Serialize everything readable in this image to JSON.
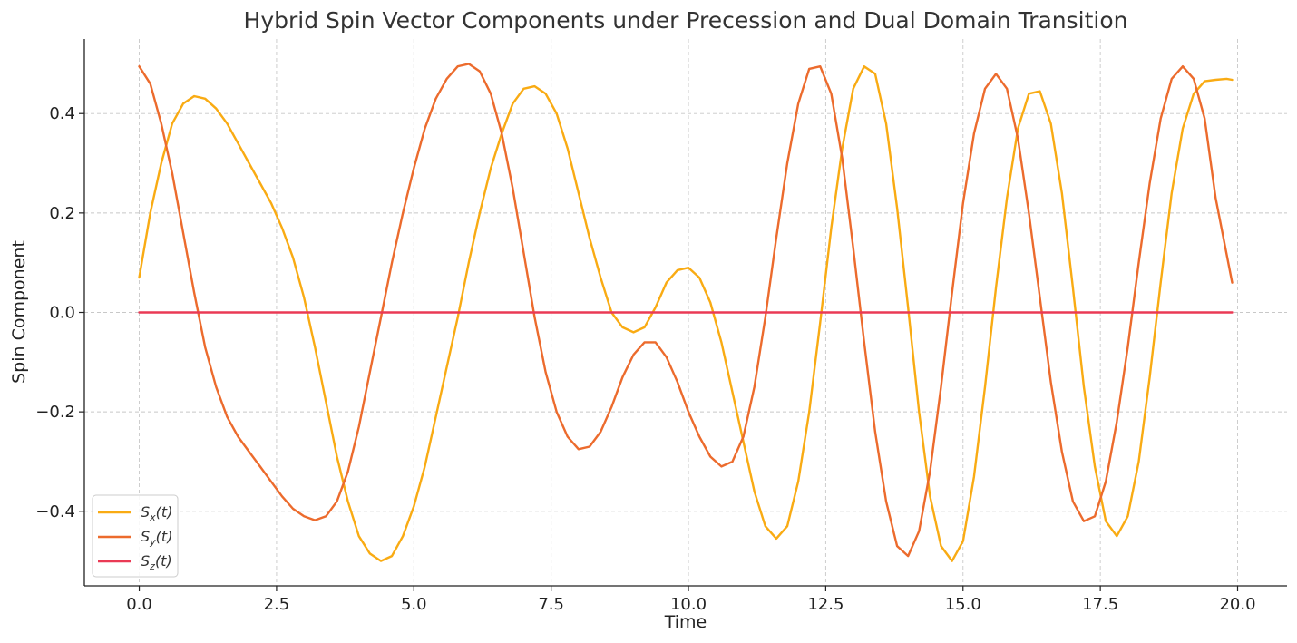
{
  "chart_data": {
    "type": "line",
    "title": "Hybrid Spin Vector Components under Precession and Dual Domain Transition",
    "xlabel": "Time",
    "ylabel": "Spin Component",
    "xlim": [
      -1.0,
      20.9
    ],
    "ylim": [
      -0.55,
      0.55
    ],
    "x_ticks": [
      0.0,
      2.5,
      5.0,
      7.5,
      10.0,
      12.5,
      15.0,
      17.5,
      20.0
    ],
    "x_tick_labels": [
      "0.0",
      "2.5",
      "5.0",
      "7.5",
      "10.0",
      "12.5",
      "15.0",
      "17.5",
      "20.0"
    ],
    "y_ticks": [
      -0.4,
      -0.2,
      0.0,
      0.2,
      0.4
    ],
    "y_tick_labels": [
      "−0.4",
      "−0.2",
      "0.0",
      "0.2",
      "0.4"
    ],
    "grid": true,
    "legend_position": "lower-left",
    "series": [
      {
        "name": "Sx(t)",
        "legend_main": "S",
        "legend_sub": "x",
        "legend_tail": "(t)",
        "color": "#f9ab13",
        "x": [
          0.0,
          0.2,
          0.4,
          0.6,
          0.8,
          1.0,
          1.2,
          1.4,
          1.6,
          1.8,
          2.0,
          2.2,
          2.4,
          2.6,
          2.8,
          3.0,
          3.2,
          3.4,
          3.6,
          3.8,
          4.0,
          4.2,
          4.4,
          4.6,
          4.8,
          5.0,
          5.2,
          5.4,
          5.6,
          5.8,
          6.0,
          6.2,
          6.4,
          6.6,
          6.8,
          7.0,
          7.2,
          7.4,
          7.6,
          7.8,
          8.0,
          8.2,
          8.4,
          8.6,
          8.8,
          9.0,
          9.2,
          9.4,
          9.6,
          9.8,
          10.0,
          10.2,
          10.4,
          10.6,
          10.8,
          11.0,
          11.2,
          11.4,
          11.6,
          11.8,
          12.0,
          12.2,
          12.4,
          12.6,
          12.8,
          13.0,
          13.2,
          13.4,
          13.6,
          13.8,
          14.0,
          14.2,
          14.4,
          14.6,
          14.8,
          15.0,
          15.2,
          15.4,
          15.6,
          15.8,
          16.0,
          16.2,
          16.4,
          16.6,
          16.8,
          17.0,
          17.2,
          17.4,
          17.6,
          17.8,
          18.0,
          18.2,
          18.4,
          18.6,
          18.8,
          19.0,
          19.2,
          19.4,
          19.6,
          19.8,
          19.9
        ],
        "values": [
          0.07,
          0.2,
          0.3,
          0.38,
          0.42,
          0.435,
          0.43,
          0.41,
          0.38,
          0.34,
          0.3,
          0.26,
          0.22,
          0.17,
          0.11,
          0.03,
          -0.07,
          -0.18,
          -0.29,
          -0.38,
          -0.45,
          -0.485,
          -0.5,
          -0.49,
          -0.45,
          -0.39,
          -0.31,
          -0.21,
          -0.11,
          -0.01,
          0.1,
          0.2,
          0.29,
          0.36,
          0.42,
          0.45,
          0.455,
          0.44,
          0.4,
          0.33,
          0.24,
          0.15,
          0.07,
          0.0,
          -0.03,
          -0.04,
          -0.03,
          0.01,
          0.06,
          0.085,
          0.09,
          0.07,
          0.02,
          -0.06,
          -0.16,
          -0.26,
          -0.36,
          -0.43,
          -0.455,
          -0.43,
          -0.34,
          -0.2,
          -0.02,
          0.17,
          0.33,
          0.45,
          0.495,
          0.48,
          0.38,
          0.21,
          0.01,
          -0.2,
          -0.37,
          -0.47,
          -0.5,
          -0.46,
          -0.33,
          -0.15,
          0.05,
          0.23,
          0.37,
          0.44,
          0.445,
          0.38,
          0.24,
          0.05,
          -0.15,
          -0.31,
          -0.42,
          -0.45,
          -0.41,
          -0.3,
          -0.13,
          0.06,
          0.24,
          0.37,
          0.44,
          0.465,
          0.468,
          0.47,
          0.468
        ]
      },
      {
        "name": "Sy(t)",
        "legend_main": "S",
        "legend_sub": "y",
        "legend_tail": "(t)",
        "color": "#ec6b2d",
        "x": [
          0.0,
          0.2,
          0.4,
          0.6,
          0.8,
          1.0,
          1.2,
          1.4,
          1.6,
          1.8,
          2.0,
          2.2,
          2.4,
          2.6,
          2.8,
          3.0,
          3.2,
          3.4,
          3.6,
          3.8,
          4.0,
          4.2,
          4.4,
          4.6,
          4.8,
          5.0,
          5.2,
          5.4,
          5.6,
          5.8,
          6.0,
          6.2,
          6.4,
          6.6,
          6.8,
          7.0,
          7.2,
          7.4,
          7.6,
          7.8,
          8.0,
          8.2,
          8.4,
          8.6,
          8.8,
          9.0,
          9.2,
          9.4,
          9.6,
          9.8,
          10.0,
          10.2,
          10.4,
          10.6,
          10.8,
          11.0,
          11.2,
          11.4,
          11.6,
          11.8,
          12.0,
          12.2,
          12.4,
          12.6,
          12.8,
          13.0,
          13.2,
          13.4,
          13.6,
          13.8,
          14.0,
          14.2,
          14.4,
          14.6,
          14.8,
          15.0,
          15.2,
          15.4,
          15.6,
          15.8,
          16.0,
          16.2,
          16.4,
          16.6,
          16.8,
          17.0,
          17.2,
          17.4,
          17.6,
          17.8,
          18.0,
          18.2,
          18.4,
          18.6,
          18.8,
          19.0,
          19.2,
          19.4,
          19.6,
          19.9
        ],
        "values": [
          0.495,
          0.46,
          0.38,
          0.28,
          0.16,
          0.04,
          -0.07,
          -0.15,
          -0.21,
          -0.25,
          -0.28,
          -0.31,
          -0.34,
          -0.37,
          -0.395,
          -0.41,
          -0.418,
          -0.41,
          -0.38,
          -0.32,
          -0.23,
          -0.12,
          -0.01,
          0.1,
          0.2,
          0.29,
          0.37,
          0.43,
          0.47,
          0.495,
          0.5,
          0.485,
          0.44,
          0.36,
          0.25,
          0.12,
          -0.01,
          -0.12,
          -0.2,
          -0.25,
          -0.275,
          -0.27,
          -0.24,
          -0.19,
          -0.13,
          -0.085,
          -0.06,
          -0.06,
          -0.09,
          -0.14,
          -0.2,
          -0.25,
          -0.29,
          -0.31,
          -0.3,
          -0.25,
          -0.15,
          -0.01,
          0.15,
          0.3,
          0.42,
          0.49,
          0.495,
          0.44,
          0.31,
          0.13,
          -0.06,
          -0.24,
          -0.38,
          -0.47,
          -0.49,
          -0.44,
          -0.32,
          -0.15,
          0.04,
          0.22,
          0.36,
          0.45,
          0.48,
          0.45,
          0.35,
          0.2,
          0.03,
          -0.14,
          -0.28,
          -0.38,
          -0.42,
          -0.41,
          -0.34,
          -0.22,
          -0.07,
          0.1,
          0.26,
          0.39,
          0.47,
          0.495,
          0.47,
          0.39,
          0.23,
          0.06
        ]
      },
      {
        "name": "Sz(t)",
        "legend_main": "S",
        "legend_sub": "z",
        "legend_tail": "(t)",
        "color": "#ea3a55",
        "x": [
          0.0,
          19.9
        ],
        "values": [
          0.0,
          0.0
        ]
      }
    ]
  }
}
